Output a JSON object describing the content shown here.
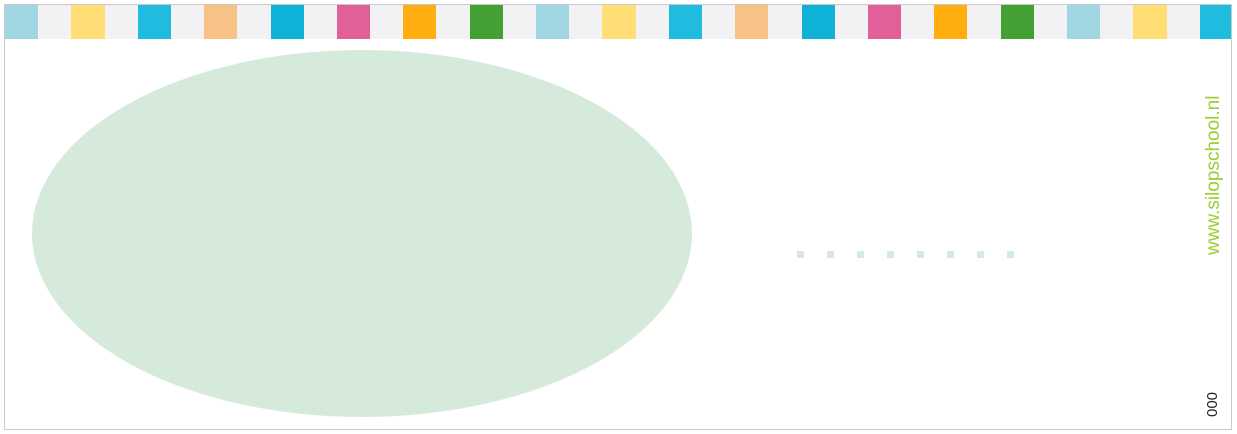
{
  "card": {
    "website": "www.silopschool.nl",
    "code": "000"
  },
  "colors": {
    "strip": [
      "#9fd6e2",
      "#f2f2f4",
      "#ffde75",
      "#f2f2f4",
      "#1fbce0",
      "#f2f2f4",
      "#f8c185",
      "#f2f2f4",
      "#0eb2d6",
      "#f2f2f4",
      "#e2609a",
      "#f2f2f4",
      "#ffad0f",
      "#f2f2f4",
      "#43a033",
      "#f2f2f4",
      "#9fd6e2",
      "#f2f2f4",
      "#ffde75",
      "#f2f2f4",
      "#1fbce0",
      "#f2f2f4",
      "#f8c185",
      "#f2f2f4",
      "#0eb2d6",
      "#f2f2f4",
      "#e2609a",
      "#f2f2f4",
      "#ffad0f",
      "#f2f2f4",
      "#43a033",
      "#f2f2f4",
      "#9fd6e2",
      "#f2f2f4",
      "#ffde75",
      "#f2f2f4",
      "#1fbce0"
    ],
    "oval": "#d6eadb",
    "dots": "#d6eadb",
    "website": "#9acd32"
  },
  "dot_count": 8
}
